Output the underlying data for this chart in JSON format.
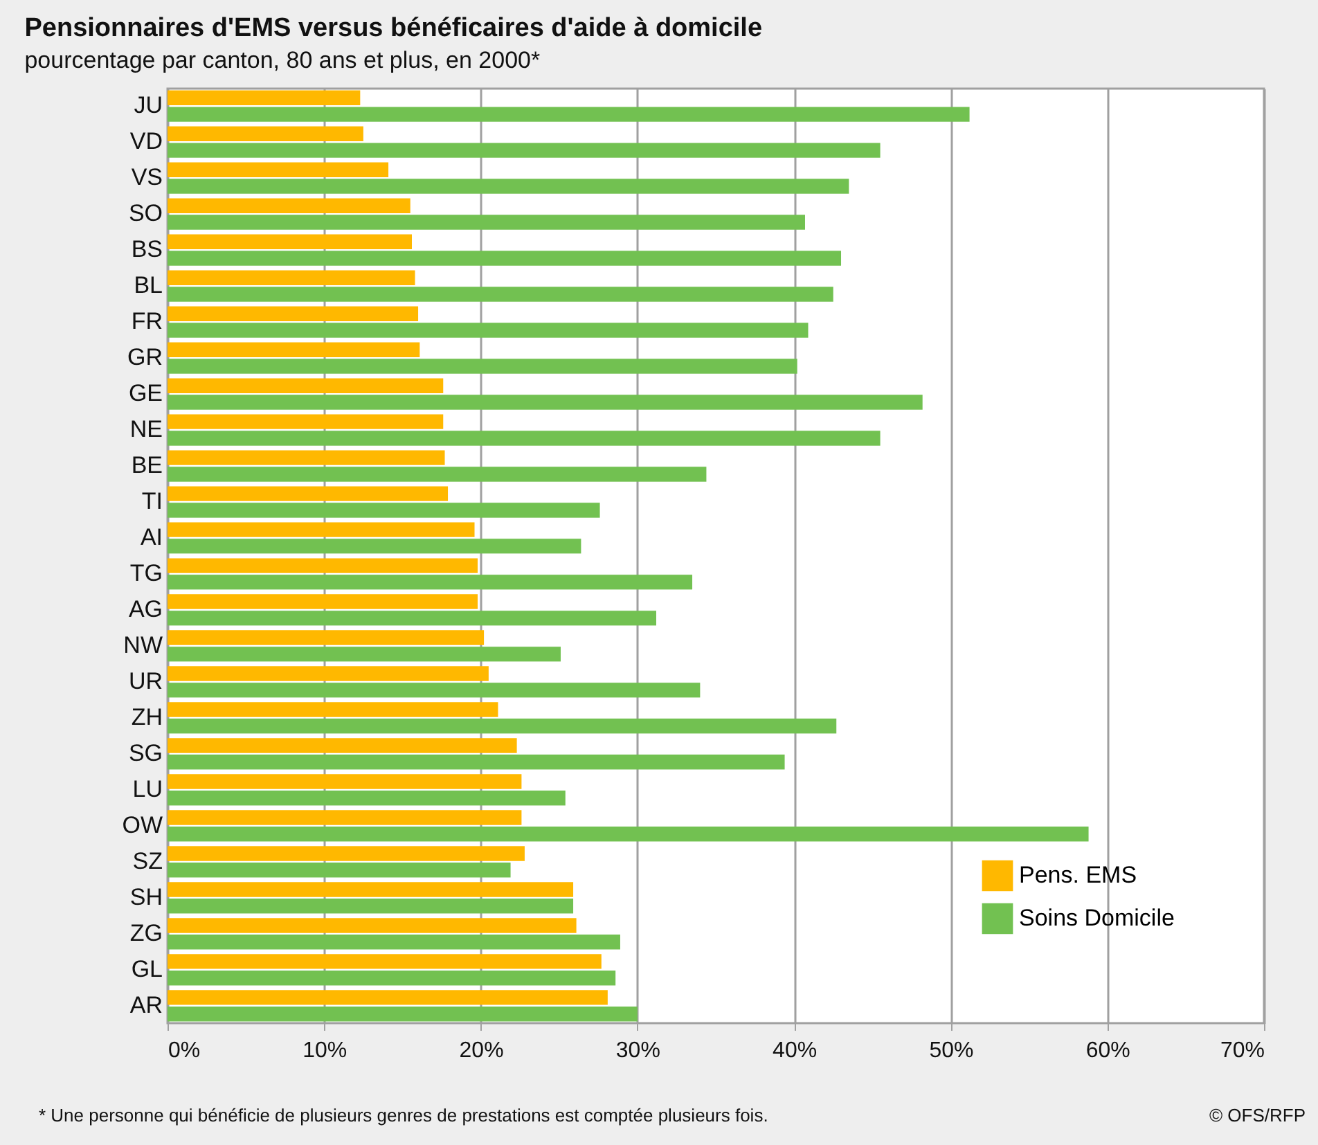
{
  "chart_data": {
    "type": "bar",
    "orientation": "horizontal",
    "title": "Pensionnaires d'EMS versus bénéficaires d'aide à domicile",
    "subtitle": "pourcentage par canton, 80 ans et plus, en 2000*",
    "categories": [
      "JU",
      "VD",
      "VS",
      "SO",
      "BS",
      "BL",
      "FR",
      "GR",
      "GE",
      "NE",
      "BE",
      "TI",
      "AI",
      "TG",
      "AG",
      "NW",
      "UR",
      "ZH",
      "SG",
      "LU",
      "OW",
      "SZ",
      "SH",
      "ZG",
      "GL",
      "AR"
    ],
    "series": [
      {
        "name": "Pens. EMS",
        "color": "#ffb800",
        "values": [
          12.3,
          12.5,
          14.1,
          15.5,
          15.6,
          15.8,
          16.0,
          16.1,
          17.6,
          17.6,
          17.7,
          17.9,
          19.6,
          19.8,
          19.8,
          20.2,
          20.5,
          21.1,
          22.3,
          22.6,
          22.6,
          22.8,
          25.9,
          26.1,
          27.7,
          28.1
        ]
      },
      {
        "name": "Soins Domicile",
        "color": "#72c151",
        "values": [
          51.2,
          45.5,
          43.5,
          40.7,
          43.0,
          42.5,
          40.9,
          40.2,
          48.2,
          45.5,
          34.4,
          27.6,
          26.4,
          33.5,
          31.2,
          25.1,
          34.0,
          42.7,
          39.4,
          25.4,
          58.8,
          21.9,
          25.9,
          28.9,
          28.6,
          30.0
        ]
      }
    ],
    "xlim": [
      0,
      70
    ],
    "xticks": [
      {
        "value": 0,
        "label": "0%"
      },
      {
        "value": 10,
        "label": "10%"
      },
      {
        "value": 20,
        "label": "20%"
      },
      {
        "value": 30,
        "label": "30%"
      },
      {
        "value": 40,
        "label": "40%"
      },
      {
        "value": 50,
        "label": "50%"
      },
      {
        "value": 60,
        "label": "60%"
      },
      {
        "value": 70,
        "label": "70%"
      }
    ],
    "grid": "x",
    "legend": "bottom right",
    "annotations": [
      "* Une personne qui bénéficie de plusieurs genres de prestations est comptée plusieurs fois.",
      "© OFS/RFP"
    ]
  }
}
